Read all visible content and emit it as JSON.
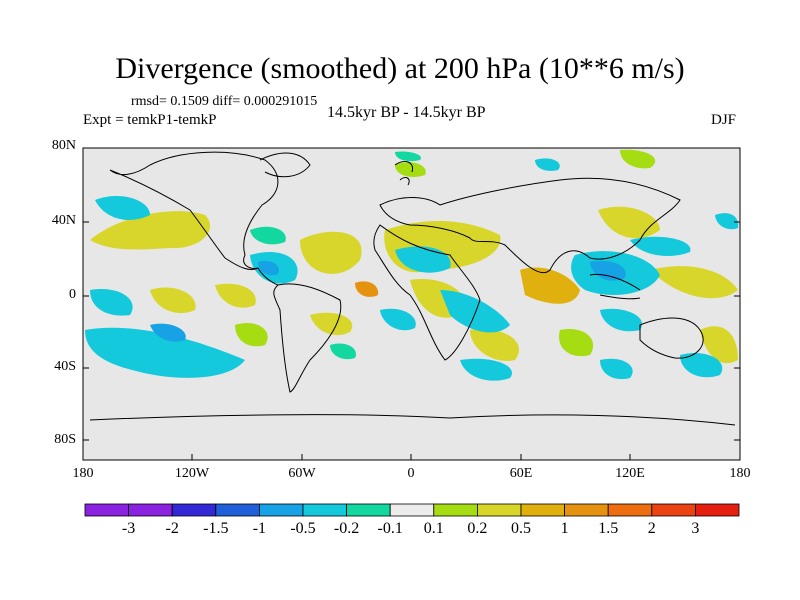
{
  "title": "Divergence (smoothed) at 200 hPa (10**6 m/s)",
  "stats": "rmsd= 0.1509 diff= 0.000291015",
  "experiment": "Expt = temkP1-temkP",
  "period": "14.5kyr BP - 14.5kyr BP",
  "season": "DJF",
  "lat_labels": [
    "80N",
    "40N",
    "0",
    "40S",
    "80S"
  ],
  "lon_labels": [
    "180",
    "120W",
    "60W",
    "0",
    "60E",
    "120E",
    "180"
  ],
  "colorbar": {
    "labels": [
      "-3",
      "-2",
      "-1.5",
      "-1",
      "-0.5",
      "-0.2",
      "-0.1",
      "0.1",
      "0.2",
      "0.5",
      "1",
      "1.5",
      "2",
      "3"
    ],
    "colors": [
      "#8a22e0",
      "#3328d6",
      "#1f60d8",
      "#17a2e6",
      "#14c9dc",
      "#12d8a0",
      "#ececec",
      "#a6dc12",
      "#d8d62a",
      "#dfb00e",
      "#e59210",
      "#ec6e10",
      "#ea4412",
      "#e62010"
    ]
  },
  "colors": {
    "background": "#e7e7e7",
    "coastline": "#000000"
  }
}
